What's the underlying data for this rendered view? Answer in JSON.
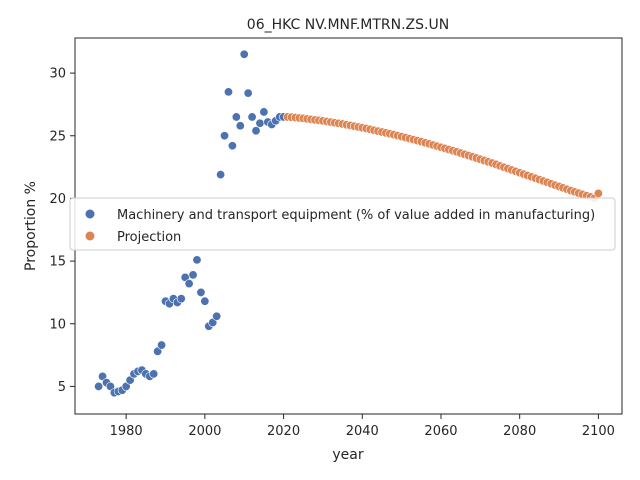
{
  "chart_data": {
    "type": "scatter",
    "title": "06_HKC NV.MNF.MTRN.ZS.UN",
    "xlabel": "year",
    "ylabel": "Proportion %",
    "xlim": [
      1967,
      2106
    ],
    "ylim": [
      2.8,
      32.8
    ],
    "xticks": [
      1980,
      2000,
      2020,
      2040,
      2060,
      2080,
      2100
    ],
    "yticks": [
      5,
      10,
      15,
      20,
      25,
      30
    ],
    "grid": false,
    "legend_position": "center-left",
    "series": [
      {
        "name": "Machinery and transport equipment (% of value added in manufacturing)",
        "color": "#4c72b0",
        "x": [
          1973,
          1974,
          1975,
          1976,
          1977,
          1978,
          1979,
          1980,
          1981,
          1982,
          1983,
          1984,
          1985,
          1986,
          1987,
          1988,
          1989,
          1990,
          1991,
          1992,
          1993,
          1994,
          1995,
          1996,
          1997,
          1998,
          1999,
          2000,
          2001,
          2002,
          2003,
          2004,
          2005,
          2006,
          2007,
          2008,
          2009,
          2010,
          2011,
          2012,
          2013,
          2014,
          2015,
          2016,
          2017,
          2018,
          2019,
          2020
        ],
        "y": [
          5.0,
          5.8,
          5.3,
          5.0,
          4.5,
          4.6,
          4.7,
          5.0,
          5.5,
          6.0,
          6.2,
          6.3,
          6.0,
          5.8,
          6.0,
          7.8,
          8.3,
          11.8,
          11.6,
          12.0,
          11.7,
          12.0,
          13.7,
          13.2,
          13.9,
          15.1,
          12.5,
          11.8,
          9.8,
          10.1,
          10.6,
          21.9,
          25.0,
          28.5,
          24.2,
          26.5,
          25.8,
          31.5,
          28.4,
          26.5,
          25.4,
          26.0,
          26.9,
          26.1,
          25.9,
          26.2,
          26.5,
          26.5
        ]
      },
      {
        "name": "Projection",
        "color": "#dd8452",
        "x": [
          2021,
          2022,
          2023,
          2024,
          2025,
          2026,
          2027,
          2028,
          2029,
          2030,
          2031,
          2032,
          2033,
          2034,
          2035,
          2036,
          2037,
          2038,
          2039,
          2040,
          2041,
          2042,
          2043,
          2044,
          2045,
          2046,
          2047,
          2048,
          2049,
          2050,
          2051,
          2052,
          2053,
          2054,
          2055,
          2056,
          2057,
          2058,
          2059,
          2060,
          2061,
          2062,
          2063,
          2064,
          2065,
          2066,
          2067,
          2068,
          2069,
          2070,
          2071,
          2072,
          2073,
          2074,
          2075,
          2076,
          2077,
          2078,
          2079,
          2080,
          2081,
          2082,
          2083,
          2084,
          2085,
          2086,
          2087,
          2088,
          2089,
          2090,
          2091,
          2092,
          2093,
          2094,
          2095,
          2096,
          2097,
          2098,
          2099,
          2100
        ],
        "y": [
          26.5,
          26.48,
          26.45,
          26.42,
          26.39,
          26.35,
          26.31,
          26.27,
          26.23,
          26.19,
          26.14,
          26.09,
          26.04,
          25.99,
          25.94,
          25.88,
          25.82,
          25.76,
          25.7,
          25.64,
          25.58,
          25.51,
          25.44,
          25.37,
          25.3,
          25.23,
          25.16,
          25.09,
          25.01,
          24.93,
          24.85,
          24.77,
          24.69,
          24.61,
          24.53,
          24.44,
          24.35,
          24.26,
          24.17,
          24.08,
          23.99,
          23.9,
          23.81,
          23.72,
          23.62,
          23.52,
          23.42,
          23.32,
          23.22,
          23.12,
          23.02,
          22.92,
          22.82,
          22.71,
          22.6,
          22.49,
          22.38,
          22.27,
          22.16,
          22.05,
          21.94,
          21.83,
          21.72,
          21.61,
          21.5,
          21.39,
          21.28,
          21.17,
          21.06,
          20.95,
          20.84,
          20.73,
          20.62,
          20.52,
          20.42,
          20.32,
          20.22,
          20.12,
          20.02,
          20.4
        ]
      }
    ]
  }
}
